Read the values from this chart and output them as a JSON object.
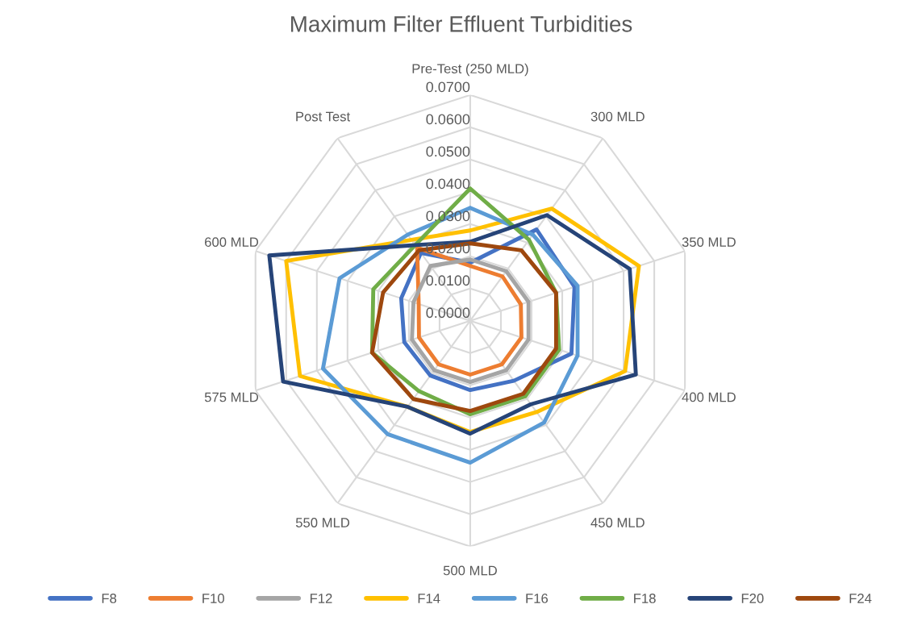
{
  "chart_data": {
    "type": "radar",
    "title": "Maximum Filter Effluent Turbidities",
    "categories": [
      "Pre-Test (250 MLD)",
      "300 MLD",
      "350 MLD",
      "400 MLD",
      "450 MLD",
      "500 MLD",
      "550 MLD",
      "575 MLD",
      "600 MLD",
      "Post Test"
    ],
    "ylim": [
      0,
      0.07
    ],
    "yticks": [
      {
        "value": 0,
        "label": "0.0000"
      },
      {
        "value": 0.01,
        "label": "0.0100"
      },
      {
        "value": 0.02,
        "label": "0.0200"
      },
      {
        "value": 0.03,
        "label": "0.0300"
      },
      {
        "value": 0.04,
        "label": "0.0400"
      },
      {
        "value": 0.05,
        "label": "0.0500"
      },
      {
        "value": 0.06,
        "label": "0.0600"
      },
      {
        "value": 0.07,
        "label": "0.0700"
      }
    ],
    "grid": true,
    "legend": "bottom",
    "marker": "none",
    "series": [
      {
        "name": "F8",
        "color": "#4472c4",
        "values": [
          0.018,
          0.035,
          0.034,
          0.033,
          0.023,
          0.0215,
          0.021,
          0.0215,
          0.0225,
          0.026
        ]
      },
      {
        "name": "F10",
        "color": "#ed7d31",
        "values": [
          0.017,
          0.017,
          0.0165,
          0.0167,
          0.0167,
          0.0167,
          0.0167,
          0.0167,
          0.0168,
          0.028
        ]
      },
      {
        "name": "F12",
        "color": "#a5a5a5",
        "values": [
          0.019,
          0.019,
          0.019,
          0.019,
          0.019,
          0.019,
          0.019,
          0.019,
          0.0185,
          0.021
        ]
      },
      {
        "name": "F14",
        "color": "#ffc000",
        "values": [
          0.028,
          0.043,
          0.055,
          0.0505,
          0.035,
          0.0345,
          0.033,
          0.0555,
          0.06,
          0.031
        ]
      },
      {
        "name": "F16",
        "color": "#5b9bd5",
        "values": [
          0.035,
          0.033,
          0.035,
          0.035,
          0.039,
          0.044,
          0.0435,
          0.048,
          0.0426,
          0.033
        ]
      },
      {
        "name": "F18",
        "color": "#70ad47",
        "values": [
          0.041,
          0.031,
          0.028,
          0.029,
          0.029,
          0.029,
          0.027,
          0.032,
          0.0316,
          0.029
        ]
      },
      {
        "name": "F20",
        "color": "#264478",
        "values": [
          0.0245,
          0.0405,
          0.052,
          0.054,
          0.032,
          0.035,
          0.033,
          0.061,
          0.0655,
          0.029
        ]
      },
      {
        "name": "F24",
        "color": "#9e480e",
        "values": [
          0.024,
          0.027,
          0.028,
          0.028,
          0.028,
          0.028,
          0.03,
          0.032,
          0.0284,
          0.027
        ]
      }
    ]
  }
}
